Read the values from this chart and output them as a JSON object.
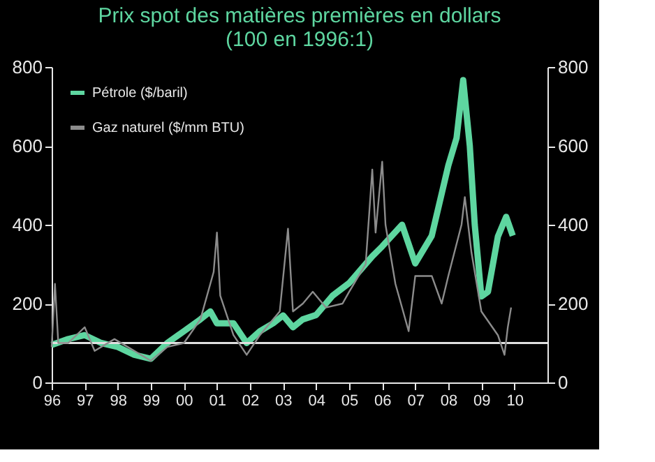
{
  "chart_data": {
    "type": "line",
    "title": "Prix spot des matières premières en dollars",
    "subtitle": "(100 en 1996:1)",
    "xlim": [
      1996,
      2011
    ],
    "xticks": [
      {
        "value": 1996,
        "label": "96"
      },
      {
        "value": 1997,
        "label": "97"
      },
      {
        "value": 1998,
        "label": "98"
      },
      {
        "value": 1999,
        "label": "99"
      },
      {
        "value": 2000,
        "label": "00"
      },
      {
        "value": 2001,
        "label": "01"
      },
      {
        "value": 2002,
        "label": "02"
      },
      {
        "value": 2003,
        "label": "03"
      },
      {
        "value": 2004,
        "label": "04"
      },
      {
        "value": 2005,
        "label": "05"
      },
      {
        "value": 2006,
        "label": "06"
      },
      {
        "value": 2007,
        "label": "07"
      },
      {
        "value": 2008,
        "label": "08"
      },
      {
        "value": 2009,
        "label": "09"
      },
      {
        "value": 2010,
        "label": "10"
      }
    ],
    "ylim": [
      0,
      800
    ],
    "yticks": [
      0,
      200,
      400,
      600,
      800
    ],
    "y2lim": [
      0,
      800
    ],
    "y2ticks": [
      0,
      200,
      400,
      600,
      800
    ],
    "grid": false,
    "legend": "top left",
    "line_style": "solid",
    "marker": "none",
    "ref_lines": [
      {
        "axis": "y",
        "value": 100,
        "label": null,
        "color": "#e0e0e0"
      }
    ],
    "series": [
      {
        "name": "Pétrole ($/baril)",
        "color": "#5ed6a0",
        "x": [
          1996.0,
          1996.5,
          1997.0,
          1997.5,
          1998.0,
          1998.5,
          1999.0,
          1999.5,
          2000.0,
          2000.5,
          2000.8,
          2001.0,
          2001.5,
          2001.9,
          2002.3,
          2002.7,
          2003.0,
          2003.3,
          2003.6,
          2004.0,
          2004.5,
          2005.0,
          2005.7,
          2006.0,
          2006.6,
          2007.0,
          2007.5,
          2008.0,
          2008.25,
          2008.45,
          2008.65,
          2008.8,
          2009.0,
          2009.2,
          2009.5,
          2009.75,
          2009.95
        ],
        "values": [
          95,
          110,
          120,
          100,
          90,
          70,
          60,
          100,
          130,
          160,
          180,
          150,
          150,
          100,
          130,
          150,
          170,
          140,
          160,
          171,
          220,
          252,
          320,
          345,
          400,
          302,
          372,
          550,
          620,
          767,
          600,
          400,
          218,
          230,
          370,
          420,
          372
        ]
      },
      {
        "name": "Gaz naturel ($/mm BTU)",
        "color": "#8c8c8c",
        "axis": "y2",
        "x": [
          1996.0,
          1996.1,
          1996.2,
          1996.5,
          1997.0,
          1997.3,
          1997.9,
          1998.5,
          1999.0,
          1999.5,
          2000.0,
          2000.5,
          2000.9,
          2001.0,
          2001.1,
          2001.5,
          2001.9,
          2002.3,
          2002.9,
          2003.15,
          2003.3,
          2003.6,
          2003.9,
          2004.3,
          2004.8,
          2005.0,
          2005.5,
          2005.7,
          2005.8,
          2006.0,
          2006.1,
          2006.4,
          2006.8,
          2007.0,
          2007.5,
          2007.8,
          2008.0,
          2008.4,
          2008.5,
          2008.7,
          2009.0,
          2009.5,
          2009.7,
          2009.8,
          2009.9
        ],
        "values": [
          90,
          250,
          100,
          100,
          140,
          80,
          110,
          80,
          55,
          90,
          100,
          160,
          280,
          380,
          220,
          120,
          70,
          120,
          180,
          390,
          180,
          200,
          230,
          190,
          200,
          230,
          300,
          540,
          380,
          560,
          400,
          250,
          130,
          270,
          270,
          200,
          270,
          400,
          470,
          330,
          180,
          120,
          70,
          140,
          190
        ]
      }
    ]
  }
}
